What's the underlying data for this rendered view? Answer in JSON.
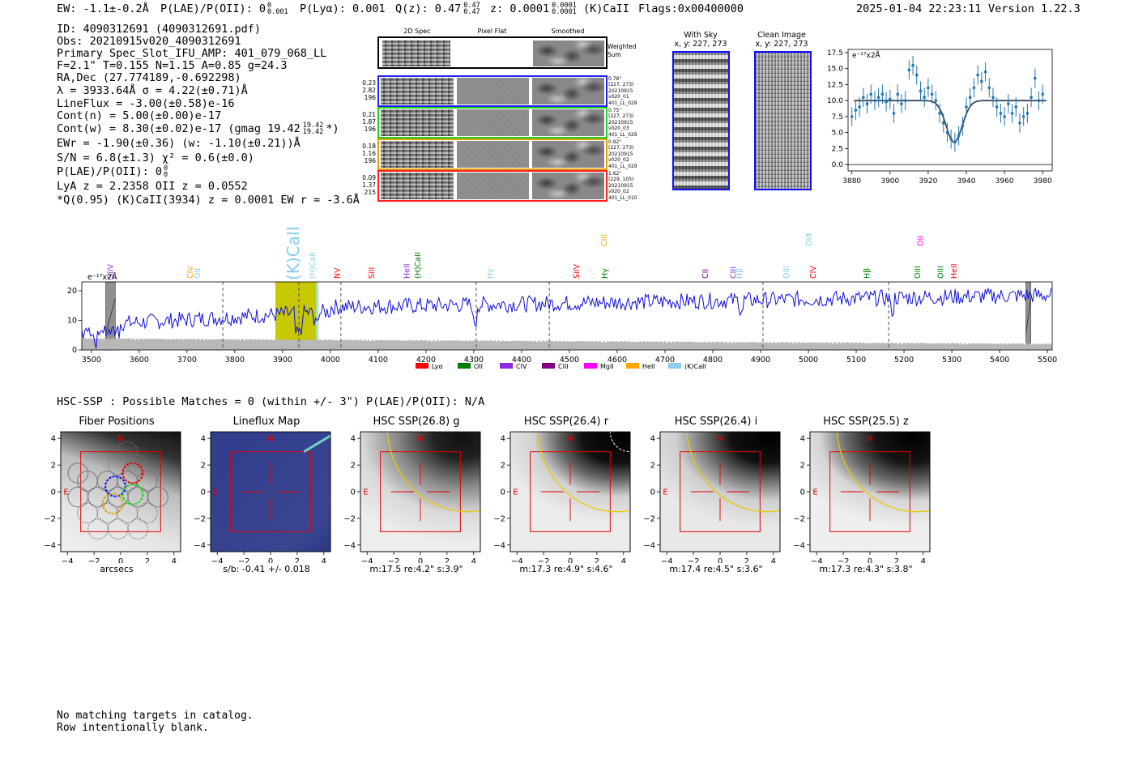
{
  "header": {
    "ew": "EW: -1.1±-0.2Å",
    "plae_label": "P(LAE)/P(OII): 0",
    "plae_sup": "0",
    "plae_sub": "0.001",
    "plya": "P(Lyα): 0.001",
    "qz_label": "Q(z): 0.47",
    "qz_sup": "0.47",
    "qz_sub": "0.47",
    "z_label": "z: 0.0001",
    "z_sup": "0.0001",
    "z_sub": "0.0001",
    "z_line": "(K)CaII",
    "flags": "Flags:0x00400000",
    "timestamp": "2025-01-04 22:23:11",
    "version": "Version 1.22.3"
  },
  "info": {
    "id": "ID: 4090312691 (4090312691.pdf)",
    "obs": "Obs: 20210915v020_4090312691",
    "primary": "Primary Spec_Slot_IFU_AMP: 401_079_068_LL",
    "params": "F=2.1\"  T=0.155  N=1.15  A=0.85  g=24.3",
    "radec": "RA,Dec (27.774189,-0.692298)",
    "lambda": "λ = 3933.64Å  σ = 4.22(±0.71)Å",
    "lineflux": "LineFlux = -3.00(±0.58)e-16",
    "contn": "Cont(n) = 5.00(±0.00)e-17",
    "contw": "Cont(w) = 8.30(±0.02)e-17 (gmag 19.42",
    "contw_sup": "19.42",
    "contw_sub": "19.42",
    "contw_end": "*)",
    "ewr": "EWr = -1.90(±0.36) (w: -1.10(±0.21))Å",
    "sn": "S/N = 6.8(±1.3)  χ² = 0.6(±0.0)",
    "plae2": "P(LAE)/P(OII): 0",
    "plae2_sup": "0",
    "plae2_sub": "0",
    "lya": "LyA z = 2.2358  OII z = 0.0552",
    "qline": "*Q(0.95) (K)CaII(3934) z = 0.0001  EW r = -3.6Å"
  },
  "cutouts": {
    "col_titles": [
      "2D Spec",
      "Pixel Flat",
      "Smoothed"
    ],
    "weighted": "Weighted Sum",
    "rows": [
      {
        "color": "#2020ff",
        "left": [
          "0.23",
          "2.82",
          "196"
        ],
        "right": [
          "0.78\"",
          "(227, 273)",
          "20210915",
          "v020_01",
          "401_LL_029"
        ]
      },
      {
        "color": "#20d020",
        "left": [
          "0.21",
          "1.87",
          "196"
        ],
        "right": [
          "0.75\"",
          "(227, 273)",
          "20210915",
          "v020_03",
          "401_LL_029"
        ]
      },
      {
        "color": "#e0a000",
        "left": [
          "0.18",
          "1.16",
          "196"
        ],
        "right": [
          "0.92\"",
          "(227, 273)",
          "20210915",
          "v020_02",
          "401_LL_029"
        ]
      },
      {
        "color": "#ff2020",
        "left": [
          "0.09",
          "1.37",
          "215"
        ],
        "right": [
          "1.62\"",
          "(229, 105)",
          "20210915",
          "v020_02",
          "401_LL_010"
        ]
      }
    ]
  },
  "sky": {
    "with_sky": "With Sky",
    "with_sky_coord": "x, y: 227, 273",
    "clean": "Clean Image",
    "clean_coord": "x, y: 227, 273"
  },
  "spectrum_units": "e⁻¹⁷x2Å",
  "fiber_row": {
    "header": "HSC-SSP : Possible Matches = 0 (within +/- 3\")  P(LAE)/P(OII): N/A",
    "panels": [
      {
        "title": "Fiber Positions",
        "foot": "arcsecs"
      },
      {
        "title": "Lineflux Map",
        "foot": "s/b: -0.41 +/- 0.018"
      },
      {
        "title": "HSC SSP(26.8) g",
        "foot": "m:17.5  re:4.2\"  s:3.9\""
      },
      {
        "title": "HSC SSP(26.4) r",
        "foot": "m:17.3  re:4.9\"  s:4.6\""
      },
      {
        "title": "HSC SSP(26.4) i",
        "foot": "m:17.4  re:4.5\"  s:3.6\""
      },
      {
        "title": "HSC SSP(25.5) z",
        "foot": "m:17.3  re:4.3\"  s:3.8\""
      }
    ],
    "n_label": "N",
    "e_label": "E"
  },
  "footer": {
    "line1": "No matching targets in catalog.",
    "line2": "Row intentionally blank."
  },
  "chart_data": [
    {
      "type": "line",
      "id": "line-fit-zoom",
      "ylabel_units": "e⁻¹⁷x2Å",
      "xlim": [
        3878,
        3985
      ],
      "ylim": [
        -1,
        18
      ],
      "xticks": [
        3880,
        3900,
        3920,
        3940,
        3960,
        3980
      ],
      "yticks": [
        0.0,
        2.5,
        5.0,
        7.5,
        10.0,
        12.5,
        15.0,
        17.5
      ],
      "points": {
        "x": [
          3880,
          3882,
          3884,
          3886,
          3888,
          3890,
          3892,
          3894,
          3896,
          3898,
          3900,
          3902,
          3904,
          3906,
          3908,
          3910,
          3912,
          3914,
          3916,
          3918,
          3920,
          3922,
          3924,
          3926,
          3928,
          3930,
          3932,
          3934,
          3936,
          3938,
          3940,
          3942,
          3944,
          3946,
          3948,
          3950,
          3952,
          3954,
          3956,
          3958,
          3960,
          3962,
          3964,
          3966,
          3968,
          3970,
          3972,
          3974,
          3976,
          3978,
          3980
        ],
        "y": [
          7.5,
          8.5,
          9.0,
          10.5,
          9.5,
          11.0,
          10.0,
          10.5,
          11.0,
          9.8,
          10.2,
          8.0,
          11.0,
          9.5,
          10.0,
          14.8,
          15.5,
          14.0,
          11.5,
          10.5,
          12.0,
          11.0,
          10.0,
          8.0,
          6.5,
          5.0,
          4.0,
          3.5,
          4.5,
          6.0,
          9.0,
          10.5,
          12.0,
          14.0,
          13.0,
          14.5,
          12.0,
          10.5,
          9.0,
          8.0,
          7.5,
          9.5,
          8.0,
          9.0,
          6.5,
          7.5,
          8.0,
          10.5,
          13.5,
          10.0,
          11.0
        ],
        "err": [
          1.5,
          1.5,
          1.5,
          1.5,
          1.5,
          1.5,
          1.5,
          1.5,
          1.5,
          1.5,
          1.5,
          1.5,
          1.5,
          1.5,
          1.5,
          1.5,
          1.5,
          1.5,
          1.5,
          1.5,
          1.5,
          1.5,
          1.5,
          1.5,
          1.5,
          1.5,
          1.5,
          1.5,
          1.5,
          1.5,
          1.5,
          1.5,
          1.5,
          1.5,
          1.5,
          1.5,
          1.5,
          1.5,
          1.5,
          1.5,
          1.5,
          1.5,
          1.5,
          1.5,
          1.5,
          1.5,
          1.5,
          1.5,
          1.5,
          1.5,
          1.5
        ]
      },
      "fit": {
        "continuum": 10.0,
        "center": 3933.64,
        "sigma": 4.22,
        "depth": 6.5
      }
    },
    {
      "type": "line",
      "id": "full-spectrum",
      "xlim": [
        3480,
        5510
      ],
      "ylim": [
        0,
        23
      ],
      "xticks": [
        3500,
        3600,
        3700,
        3800,
        3900,
        4000,
        4100,
        4200,
        4300,
        4400,
        4500,
        4600,
        4700,
        4800,
        4900,
        5000,
        5100,
        5200,
        5300,
        5400,
        5500
      ],
      "yticks": [
        0,
        10,
        20
      ],
      "highlight_band": [
        3885,
        3975
      ],
      "dashed_lines": [
        3775,
        3934,
        4022,
        4305,
        4458,
        4905,
        5168
      ],
      "bad_regions": [
        [
          3530,
          3550
        ],
        [
          5455,
          5465
        ]
      ],
      "legend": [
        {
          "name": "Lyα",
          "color": "#ff0000"
        },
        {
          "name": "OII",
          "color": "#008000"
        },
        {
          "name": "CIV",
          "color": "#8a2be2"
        },
        {
          "name": "CIII",
          "color": "#800080"
        },
        {
          "name": "MgII",
          "color": "#ff00ff"
        },
        {
          "name": "HeII",
          "color": "#ffa500"
        },
        {
          "name": "(K)CaII",
          "color": "#87ceeb"
        }
      ],
      "line_labels": [
        {
          "text": "SiIV",
          "x": 3545,
          "color": "#8a2be2"
        },
        {
          "text": "CIV",
          "x": 3712,
          "color": "#ffa500"
        },
        {
          "text": "OII",
          "x": 3727,
          "color": "#87ceeb"
        },
        {
          "text": "(K)CaII",
          "x": 3934,
          "color": "#87ceeb"
        },
        {
          "text": "(H)CaII",
          "x": 3968,
          "color": "#87ceeb"
        },
        {
          "text": "NV",
          "x": 4020,
          "color": "#ff0000"
        },
        {
          "text": "SiII",
          "x": 4092,
          "color": "#ff0000"
        },
        {
          "text": "HeII",
          "x": 4165,
          "color": "#8a2be2"
        },
        {
          "text": "(H)CaII",
          "x": 4188,
          "color": "#008000"
        },
        {
          "text": "Hγ",
          "x": 4340,
          "color": "#87ceeb"
        },
        {
          "text": "SiIV",
          "x": 4520,
          "color": "#ff0000"
        },
        {
          "text": "CIII",
          "x": 4578,
          "color": "#ffa500"
        },
        {
          "text": "Hγ",
          "x": 4580,
          "color": "#008000"
        },
        {
          "text": "CII",
          "x": 4790,
          "color": "#800080"
        },
        {
          "text": "CIII",
          "x": 4848,
          "color": "#8a2be2"
        },
        {
          "text": "Hβ",
          "x": 4861,
          "color": "#87ceeb"
        },
        {
          "text": "OIII",
          "x": 4959,
          "color": "#87ceeb"
        },
        {
          "text": "OIII",
          "x": 5007,
          "color": "#87ceeb"
        },
        {
          "text": "CIV",
          "x": 5015,
          "color": "#ff0000"
        },
        {
          "text": "Hβ",
          "x": 5128,
          "color": "#008000"
        },
        {
          "text": "OIII",
          "x": 5234,
          "color": "#008000"
        },
        {
          "text": "OII",
          "x": 5240,
          "color": "#ff00ff"
        },
        {
          "text": "OIII",
          "x": 5282,
          "color": "#008000"
        },
        {
          "text": "HeII",
          "x": 5310,
          "color": "#ff0000"
        }
      ]
    }
  ]
}
